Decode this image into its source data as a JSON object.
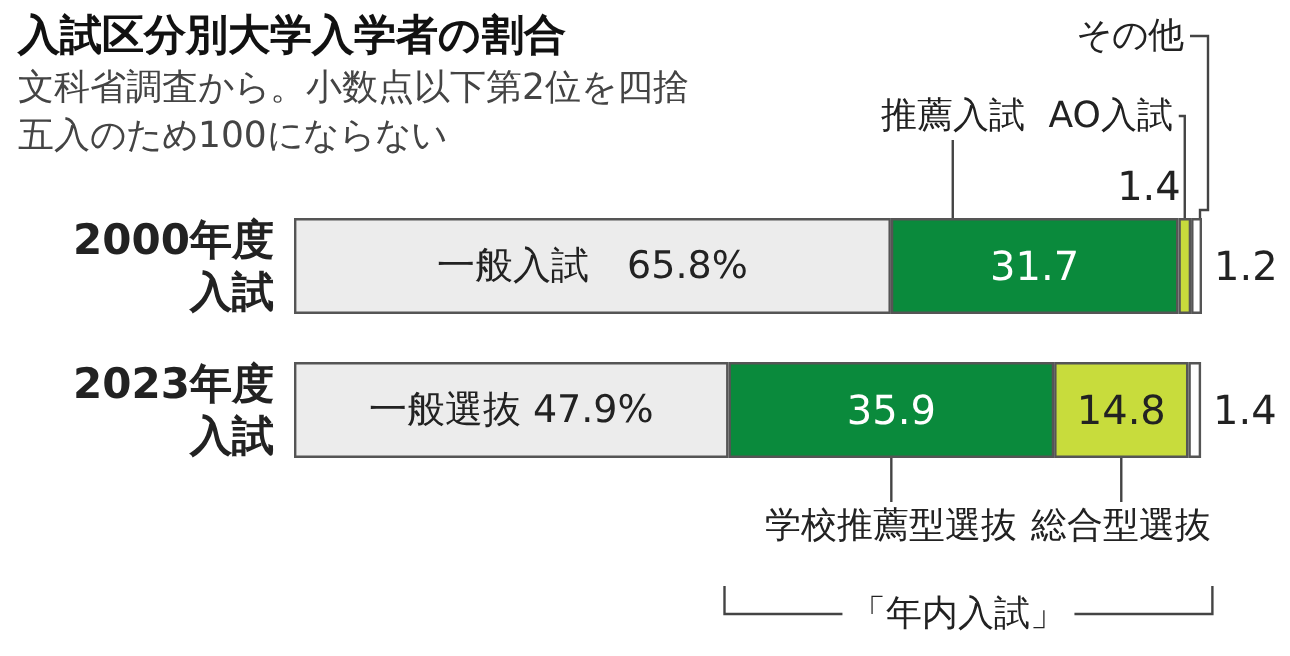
{
  "chart_data": {
    "type": "bar",
    "orientation": "horizontal",
    "stacked": true,
    "title": "入試区分別大学入学者の割合",
    "subtitle": "文科省調査から。小数点以下第2位を四捨五入のため100にならない",
    "categories": [
      "2000年度入試",
      "2023年度入試"
    ],
    "series": [
      {
        "color": "#ececec",
        "values": [
          65.8,
          47.9
        ],
        "value_labels": [
          "一般入試　65.8%",
          "一般選抜 47.9%"
        ]
      },
      {
        "color": "#0a8a3c",
        "values": [
          31.7,
          35.9
        ],
        "value_labels": [
          "31.7",
          "35.9"
        ]
      },
      {
        "color": "#c8dc3c",
        "values": [
          1.4,
          14.8
        ],
        "value_labels": [
          "1.4",
          "14.8"
        ]
      },
      {
        "color": "#ffffff",
        "values": [
          1.2,
          1.4
        ],
        "value_labels": [
          "1.2",
          "1.4"
        ]
      }
    ],
    "annotations": [
      "推薦入試",
      "AO入試",
      "その他",
      "学校推薦型選抜",
      "総合型選抜",
      "「年内入試」"
    ]
  }
}
